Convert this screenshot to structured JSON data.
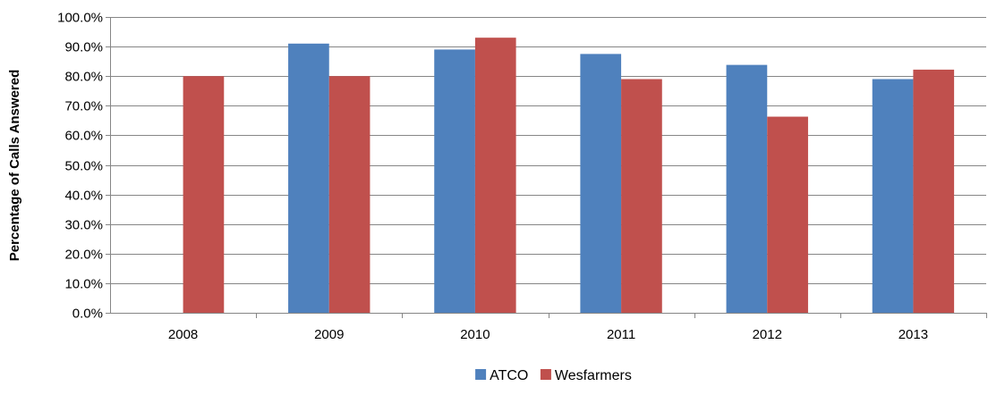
{
  "chart_data": {
    "type": "bar",
    "title": "",
    "xlabel": "",
    "ylabel": "Percentage of Calls Answered",
    "categories": [
      "2008",
      "2009",
      "2010",
      "2011",
      "2012",
      "2013"
    ],
    "series": [
      {
        "name": "ATCO",
        "color": "#4F81BD",
        "values": [
          null,
          91.0,
          89.0,
          87.5,
          83.8,
          79.0
        ]
      },
      {
        "name": "Wesfarmers",
        "color": "#C0504D",
        "values": [
          80.0,
          80.0,
          93.0,
          79.0,
          66.3,
          82.2
        ]
      }
    ],
    "ylim": [
      0,
      100
    ],
    "yticks": [
      "0.0%",
      "10.0%",
      "20.0%",
      "30.0%",
      "40.0%",
      "50.0%",
      "60.0%",
      "70.0%",
      "80.0%",
      "90.0%",
      "100.0%"
    ],
    "grid": true,
    "legend_position": "bottom"
  }
}
